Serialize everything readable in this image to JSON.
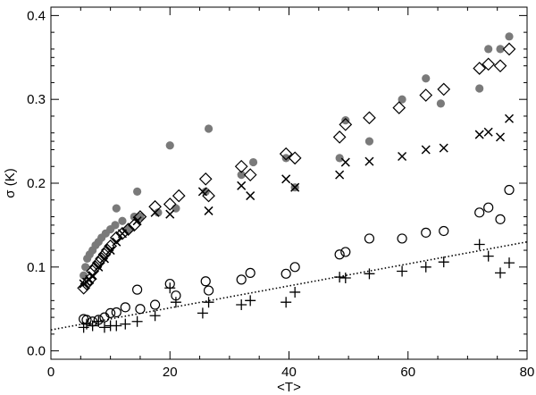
{
  "chart_data": {
    "type": "scatter",
    "xlabel": "<T>",
    "ylabel": "σ (K)",
    "xlim": [
      0,
      80
    ],
    "ylim": [
      -0.01,
      0.41
    ],
    "xticks": [
      0,
      20,
      40,
      60,
      80
    ],
    "yticks": [
      0.0,
      0.1,
      0.2,
      0.3,
      0.4
    ],
    "xtick_labels": [
      "0",
      "20",
      "40",
      "60",
      "80"
    ],
    "ytick_labels": [
      "0.0",
      "0.1",
      "0.2",
      "0.3",
      "0.4"
    ],
    "grid": false,
    "legend": "none",
    "series": [
      {
        "marker": "filled-circle",
        "color": "#7a7a7a",
        "points": [
          [
            5.5,
            0.09
          ],
          [
            5.8,
            0.1
          ],
          [
            6.1,
            0.11
          ],
          [
            6.5,
            0.115
          ],
          [
            7.0,
            0.12
          ],
          [
            7.5,
            0.126
          ],
          [
            8.0,
            0.13
          ],
          [
            8.5,
            0.135
          ],
          [
            9.2,
            0.14
          ],
          [
            10.0,
            0.145
          ],
          [
            10.8,
            0.15
          ],
          [
            11.0,
            0.17
          ],
          [
            12.0,
            0.155
          ],
          [
            13.0,
            0.145
          ],
          [
            14.0,
            0.16
          ],
          [
            14.5,
            0.19
          ],
          [
            15.0,
            0.16
          ],
          [
            18.0,
            0.165
          ],
          [
            20.0,
            0.245
          ],
          [
            21.0,
            0.17
          ],
          [
            26.0,
            0.19
          ],
          [
            26.5,
            0.265
          ],
          [
            32.0,
            0.21
          ],
          [
            34.0,
            0.225
          ],
          [
            39.5,
            0.23
          ],
          [
            41.0,
            0.195
          ],
          [
            48.5,
            0.23
          ],
          [
            49.5,
            0.275
          ],
          [
            53.5,
            0.25
          ],
          [
            59.0,
            0.3
          ],
          [
            63.0,
            0.325
          ],
          [
            65.5,
            0.295
          ],
          [
            72.0,
            0.313
          ],
          [
            73.5,
            0.36
          ],
          [
            75.5,
            0.36
          ],
          [
            77.0,
            0.375
          ]
        ]
      },
      {
        "marker": "open-diamond",
        "color": "#000000",
        "points": [
          [
            5.5,
            0.075
          ],
          [
            6.0,
            0.08
          ],
          [
            6.5,
            0.085
          ],
          [
            7.0,
            0.095
          ],
          [
            7.5,
            0.1
          ],
          [
            8.0,
            0.105
          ],
          [
            8.5,
            0.11
          ],
          [
            9.0,
            0.115
          ],
          [
            9.5,
            0.12
          ],
          [
            10.0,
            0.125
          ],
          [
            11.0,
            0.135
          ],
          [
            12.0,
            0.14
          ],
          [
            13.0,
            0.145
          ],
          [
            14.0,
            0.15
          ],
          [
            15.0,
            0.16
          ],
          [
            17.5,
            0.172
          ],
          [
            20.0,
            0.175
          ],
          [
            21.5,
            0.185
          ],
          [
            26.0,
            0.205
          ],
          [
            26.5,
            0.185
          ],
          [
            32.0,
            0.22
          ],
          [
            33.5,
            0.21
          ],
          [
            39.5,
            0.235
          ],
          [
            41.0,
            0.23
          ],
          [
            48.5,
            0.255
          ],
          [
            49.5,
            0.27
          ],
          [
            53.5,
            0.278
          ],
          [
            58.5,
            0.29
          ],
          [
            63.0,
            0.305
          ],
          [
            66.0,
            0.312
          ],
          [
            72.0,
            0.337
          ],
          [
            73.5,
            0.342
          ],
          [
            75.5,
            0.34
          ],
          [
            77.0,
            0.36
          ]
        ]
      },
      {
        "marker": "x-cross",
        "color": "#000000",
        "points": [
          [
            5.5,
            0.08
          ],
          [
            6.0,
            0.082
          ],
          [
            6.5,
            0.085
          ],
          [
            7.0,
            0.09
          ],
          [
            8.0,
            0.1
          ],
          [
            9.0,
            0.11
          ],
          [
            10.0,
            0.12
          ],
          [
            11.0,
            0.13
          ],
          [
            12.0,
            0.14
          ],
          [
            14.5,
            0.155
          ],
          [
            17.5,
            0.165
          ],
          [
            20.0,
            0.163
          ],
          [
            25.5,
            0.19
          ],
          [
            26.5,
            0.167
          ],
          [
            32.0,
            0.197
          ],
          [
            33.5,
            0.185
          ],
          [
            39.5,
            0.205
          ],
          [
            41.0,
            0.195
          ],
          [
            48.5,
            0.21
          ],
          [
            49.5,
            0.225
          ],
          [
            53.5,
            0.226
          ],
          [
            59.0,
            0.232
          ],
          [
            63.0,
            0.24
          ],
          [
            66.0,
            0.242
          ],
          [
            72.0,
            0.258
          ],
          [
            73.5,
            0.261
          ],
          [
            75.5,
            0.255
          ],
          [
            77.0,
            0.277
          ]
        ]
      },
      {
        "marker": "open-circle",
        "color": "#000000",
        "points": [
          [
            5.5,
            0.038
          ],
          [
            6.0,
            0.037
          ],
          [
            7.0,
            0.035
          ],
          [
            8.0,
            0.037
          ],
          [
            9.0,
            0.04
          ],
          [
            10.0,
            0.045
          ],
          [
            11.0,
            0.046
          ],
          [
            12.5,
            0.052
          ],
          [
            14.5,
            0.073
          ],
          [
            15.0,
            0.05
          ],
          [
            17.5,
            0.055
          ],
          [
            20.0,
            0.08
          ],
          [
            21.0,
            0.066
          ],
          [
            26.0,
            0.083
          ],
          [
            26.5,
            0.072
          ],
          [
            32.0,
            0.085
          ],
          [
            33.5,
            0.093
          ],
          [
            39.5,
            0.092
          ],
          [
            41.0,
            0.1
          ],
          [
            48.5,
            0.115
          ],
          [
            49.5,
            0.118
          ],
          [
            53.5,
            0.134
          ],
          [
            59.0,
            0.134
          ],
          [
            63.0,
            0.141
          ],
          [
            66.0,
            0.143
          ],
          [
            72.0,
            0.165
          ],
          [
            73.5,
            0.171
          ],
          [
            75.5,
            0.157
          ],
          [
            77.0,
            0.192
          ]
        ]
      },
      {
        "marker": "plus",
        "color": "#000000",
        "points": [
          [
            5.5,
            0.028
          ],
          [
            6.0,
            0.032
          ],
          [
            7.0,
            0.03
          ],
          [
            8.0,
            0.035
          ],
          [
            9.0,
            0.028
          ],
          [
            10.0,
            0.03
          ],
          [
            11.0,
            0.03
          ],
          [
            12.5,
            0.032
          ],
          [
            14.5,
            0.035
          ],
          [
            17.5,
            0.042
          ],
          [
            20.0,
            0.075
          ],
          [
            21.0,
            0.058
          ],
          [
            25.5,
            0.045
          ],
          [
            26.5,
            0.058
          ],
          [
            32.0,
            0.055
          ],
          [
            33.5,
            0.06
          ],
          [
            39.5,
            0.058
          ],
          [
            41.0,
            0.07
          ],
          [
            48.5,
            0.088
          ],
          [
            49.5,
            0.087
          ],
          [
            53.5,
            0.092
          ],
          [
            59.0,
            0.095
          ],
          [
            63.0,
            0.1
          ],
          [
            66.0,
            0.106
          ],
          [
            72.0,
            0.127
          ],
          [
            73.5,
            0.113
          ],
          [
            75.5,
            0.093
          ],
          [
            77.0,
            0.105
          ]
        ]
      }
    ],
    "fit_line": {
      "style": "dotted",
      "x": [
        0,
        80
      ],
      "y": [
        0.025,
        0.13
      ]
    }
  }
}
